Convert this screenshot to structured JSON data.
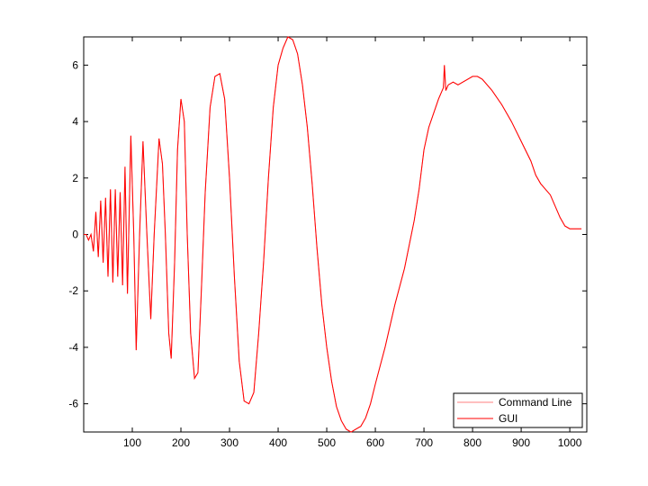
{
  "chart_data": {
    "type": "line",
    "x": [
      0,
      5,
      10,
      15,
      20,
      25,
      30,
      35,
      40,
      45,
      50,
      55,
      60,
      65,
      70,
      75,
      80,
      85,
      90,
      97,
      103,
      108,
      115,
      122,
      130,
      138,
      145,
      155,
      162,
      168,
      175,
      180,
      187,
      193,
      200,
      207,
      213,
      220,
      228,
      235,
      242,
      250,
      260,
      270,
      280,
      290,
      300,
      310,
      320,
      330,
      340,
      350,
      360,
      370,
      380,
      390,
      400,
      410,
      420,
      430,
      440,
      450,
      460,
      470,
      480,
      490,
      500,
      510,
      520,
      530,
      540,
      550,
      560,
      570,
      580,
      590,
      600,
      620,
      640,
      660,
      680,
      690,
      700,
      710,
      720,
      730,
      740,
      742,
      745,
      750,
      760,
      770,
      780,
      790,
      800,
      810,
      820,
      840,
      860,
      880,
      900,
      920,
      930,
      940,
      960,
      980,
      990,
      1000,
      1024
    ],
    "series": [
      {
        "name": "Command Line",
        "color": "#ff7f7f",
        "values": [
          0,
          0,
          -0.2,
          0,
          -0.6,
          0.8,
          -0.8,
          1.2,
          -1.0,
          1.3,
          -1.5,
          1.6,
          -1.7,
          1.6,
          -1.5,
          1.5,
          -1.8,
          2.4,
          -2.1,
          3.5,
          0,
          -4.1,
          0,
          3.3,
          0,
          -3.0,
          0,
          3.4,
          2.5,
          0,
          -3.5,
          -4.4,
          -1,
          3,
          4.8,
          4,
          0,
          -3.5,
          -5.1,
          -4.9,
          -2,
          1.5,
          4.5,
          5.6,
          5.7,
          4.8,
          2,
          -1.5,
          -4.5,
          -5.9,
          -6.0,
          -5.6,
          -3.5,
          -1,
          2,
          4.5,
          6.0,
          6.6,
          7.0,
          6.9,
          6.4,
          5.3,
          3.8,
          1.8,
          -0.5,
          -2.5,
          -4.0,
          -5.2,
          -6.1,
          -6.6,
          -6.9,
          -7.0,
          -6.9,
          -6.8,
          -6.5,
          -6.0,
          -5.3,
          -4.0,
          -2.5,
          -1.2,
          0.5,
          1.6,
          3.0,
          3.8,
          4.3,
          4.8,
          5.2,
          6.0,
          5.1,
          5.3,
          5.4,
          5.3,
          5.4,
          5.5,
          5.6,
          5.6,
          5.5,
          5.1,
          4.6,
          4.0,
          3.3,
          2.6,
          2.1,
          1.8,
          1.4,
          0.6,
          0.3,
          0.2,
          0.2
        ]
      },
      {
        "name": "GUI",
        "color": "#ff0000",
        "values": [
          0,
          0,
          -0.2,
          0,
          -0.6,
          0.8,
          -0.8,
          1.2,
          -1.0,
          1.3,
          -1.5,
          1.6,
          -1.7,
          1.6,
          -1.5,
          1.5,
          -1.8,
          2.4,
          -2.1,
          3.5,
          0,
          -4.1,
          0,
          3.3,
          0,
          -3.0,
          0,
          3.4,
          2.5,
          0,
          -3.5,
          -4.4,
          -1,
          3,
          4.8,
          4,
          0,
          -3.5,
          -5.1,
          -4.9,
          -2,
          1.5,
          4.5,
          5.6,
          5.7,
          4.8,
          2,
          -1.5,
          -4.5,
          -5.9,
          -6.0,
          -5.6,
          -3.5,
          -1,
          2,
          4.5,
          6.0,
          6.6,
          7.0,
          6.9,
          6.4,
          5.3,
          3.8,
          1.8,
          -0.5,
          -2.5,
          -4.0,
          -5.2,
          -6.1,
          -6.6,
          -6.9,
          -7.0,
          -6.9,
          -6.8,
          -6.5,
          -6.0,
          -5.3,
          -4.0,
          -2.5,
          -1.2,
          0.5,
          1.6,
          3.0,
          3.8,
          4.3,
          4.8,
          5.2,
          6.0,
          5.1,
          5.3,
          5.4,
          5.3,
          5.4,
          5.5,
          5.6,
          5.6,
          5.5,
          5.1,
          4.6,
          4.0,
          3.3,
          2.6,
          2.1,
          1.8,
          1.4,
          0.6,
          0.3,
          0.2,
          0.2
        ]
      }
    ],
    "xlim": [
      0,
      1035
    ],
    "xticks": [
      100,
      200,
      300,
      400,
      500,
      600,
      700,
      800,
      900,
      1000
    ],
    "ylim": [
      -7,
      7
    ],
    "yticks": [
      -6,
      -4,
      -2,
      0,
      2,
      4,
      6
    ],
    "grid": false,
    "legend": "lower right"
  }
}
